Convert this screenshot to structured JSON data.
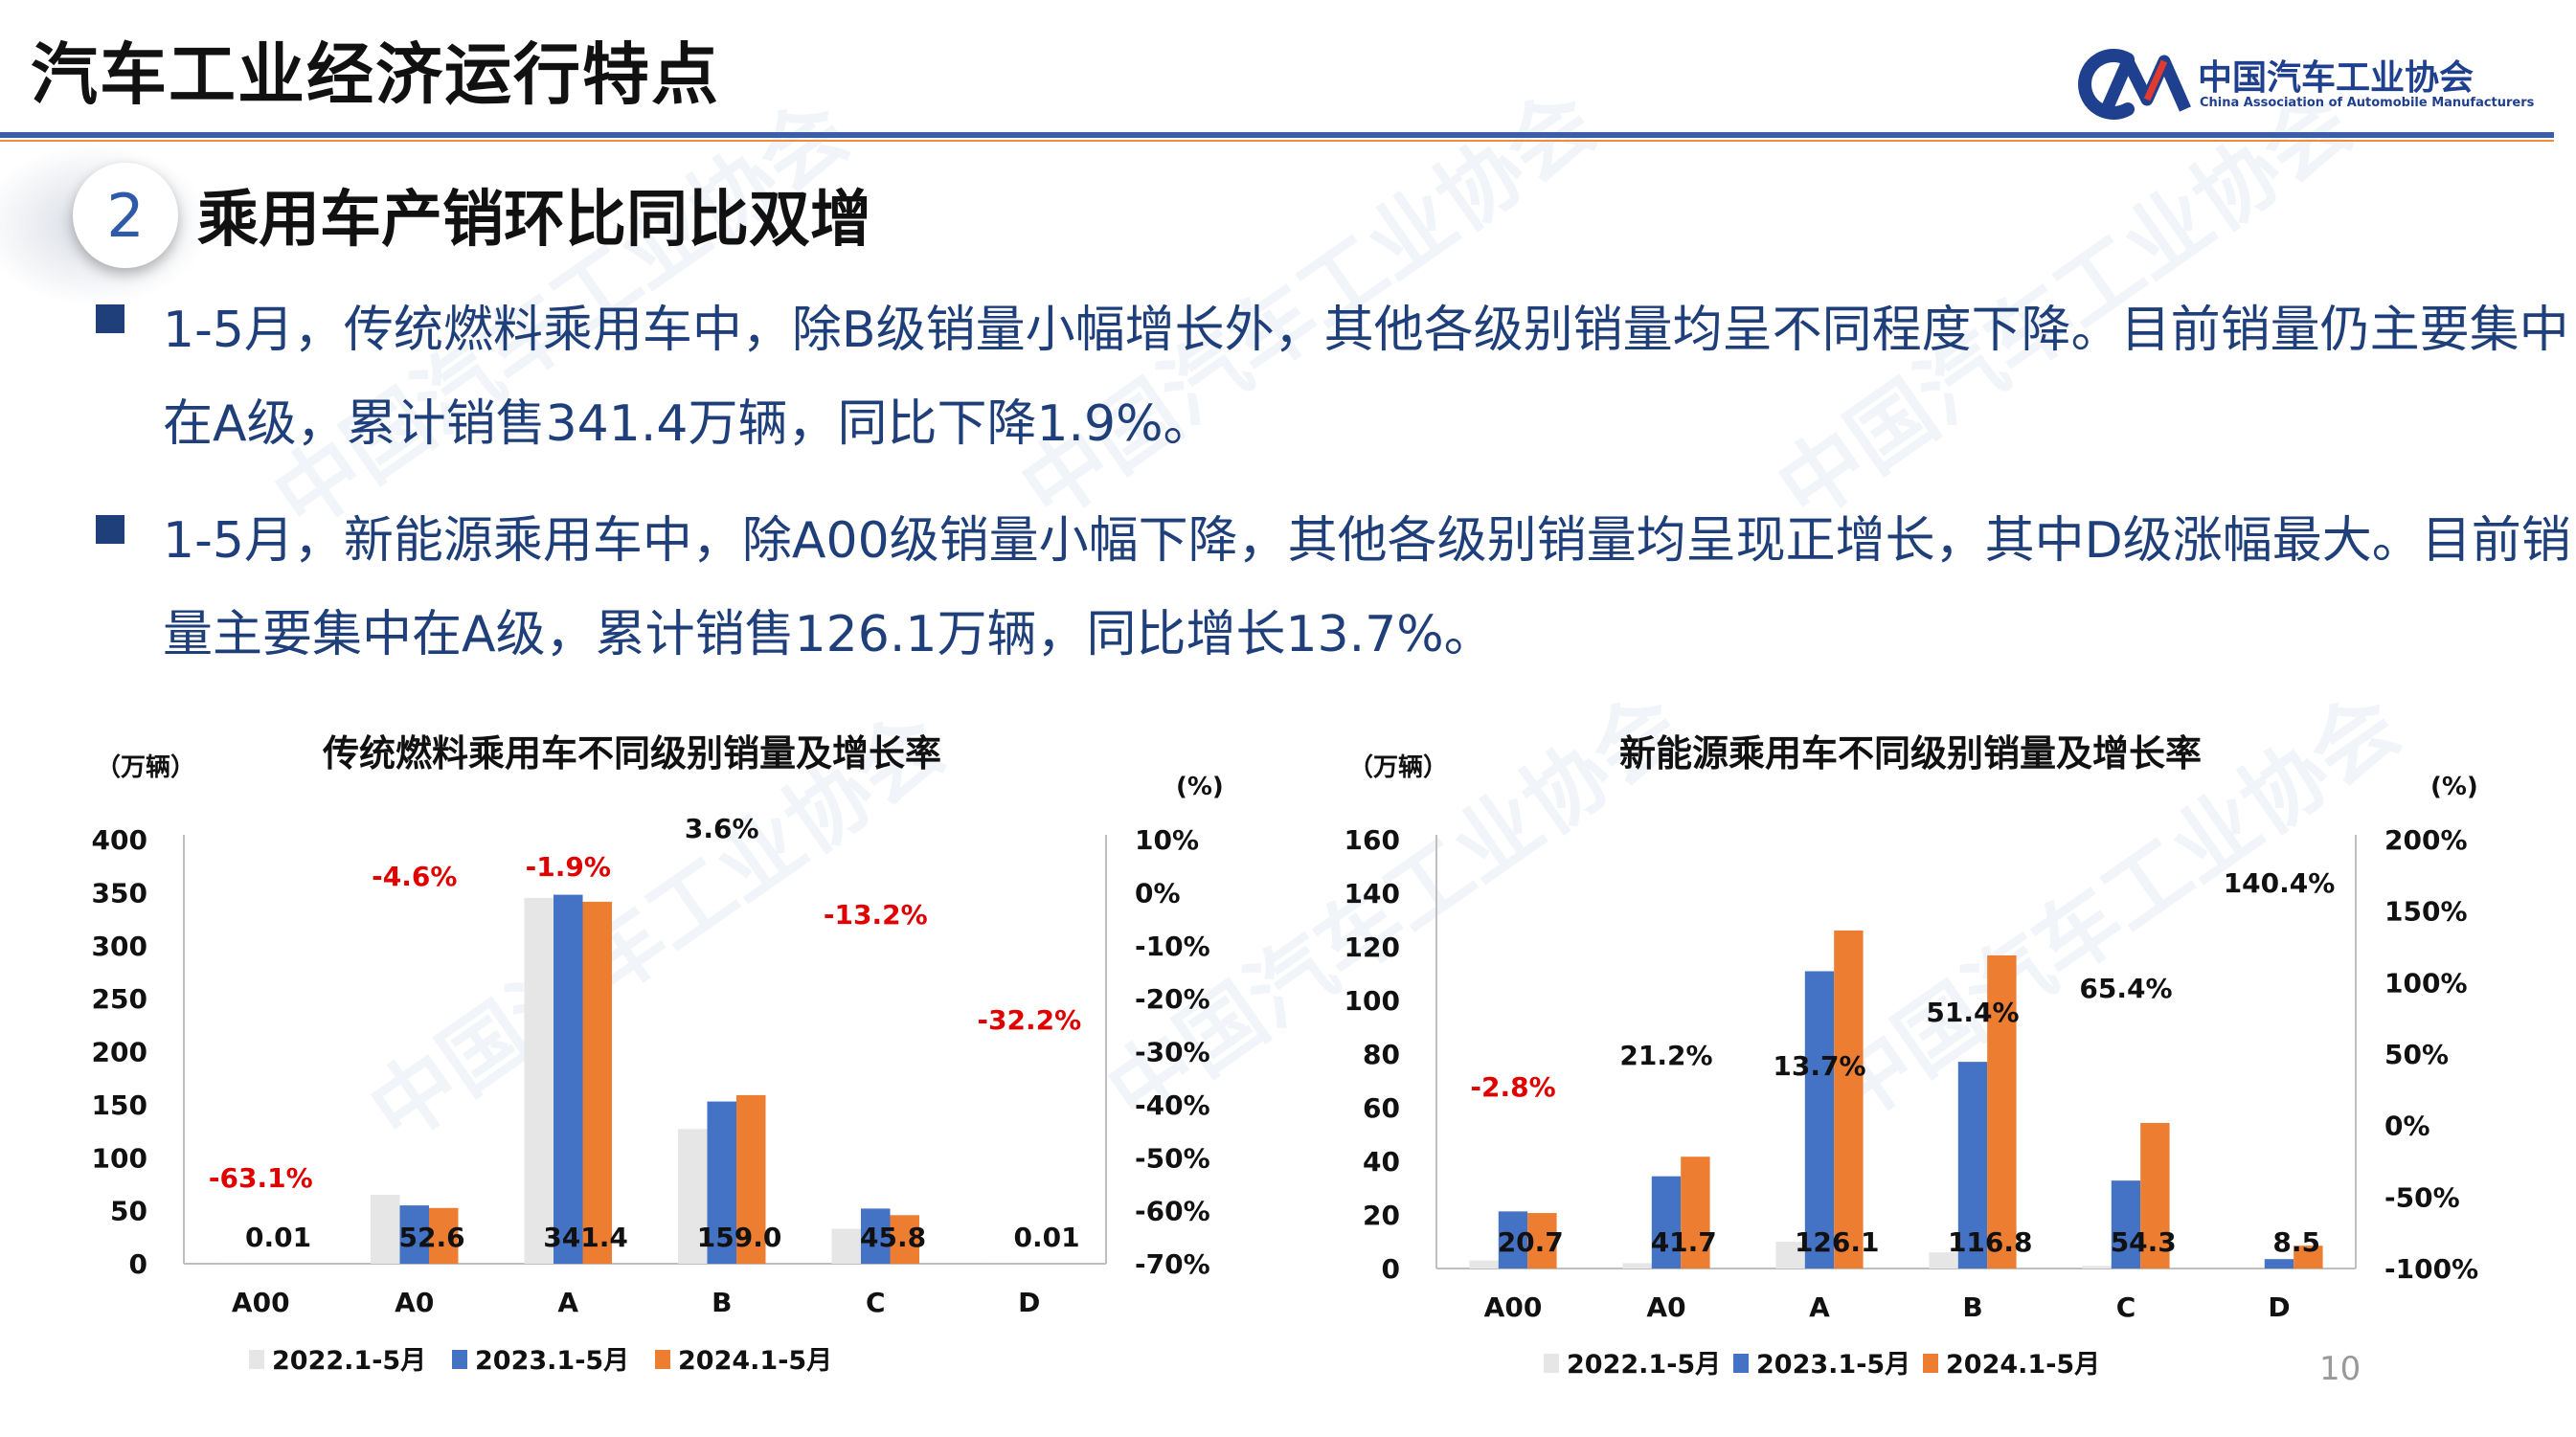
{
  "header": {
    "title": "汽车工业经济运行特点",
    "logo_cn": "中国汽车工业协会",
    "logo_en": "China Association of Automobile Manufacturers"
  },
  "section": {
    "number": "2",
    "title": "乘用车产销环比同比双增"
  },
  "bullets": [
    "1-5月，传统燃料乘用车中，除B级销量小幅增长外，其他各级别销量均呈不同程度下降。目前销量仍主要集中在A级，累计销售341.4万辆，同比下降1.9%。",
    "1-5月，新能源乘用车中，除A00级销量小幅下降，其他各级别销量均呈现正增长，其中D级涨幅最大。目前销量主要集中在A级，累计销售126.1万辆，同比增长13.7%。"
  ],
  "watermark": "中国汽车工业协会",
  "page_number": "10",
  "colors": {
    "s2022": "#e6e6e6",
    "s2023": "#4472c4",
    "s2024": "#ed7d31",
    "growth": "#e00000",
    "navy": "#1f3f7a"
  },
  "chart_data": [
    {
      "type": "bar",
      "title": "传统燃料乘用车不同级别销量及增长率",
      "ylabel_left": "（万辆）",
      "ylabel_right": "(%)",
      "categories": [
        "A00",
        "A0",
        "A",
        "B",
        "C",
        "D"
      ],
      "ylim": [
        0,
        400
      ],
      "yticks": [
        "0",
        "50",
        "100",
        "150",
        "200",
        "250",
        "300",
        "350",
        "400"
      ],
      "ylim_right": [
        -70,
        10
      ],
      "yticks_right": [
        "-70%",
        "-60%",
        "-50%",
        "-40%",
        "-30%",
        "-20%",
        "-10%",
        "0%",
        "10%"
      ],
      "series": [
        {
          "name": "2022.1-5月",
          "values": [
            0.01,
            65,
            345,
            127,
            33,
            0.01
          ]
        },
        {
          "name": "2023.1-5月",
          "values": [
            0.01,
            55,
            348,
            153,
            52,
            0.01
          ]
        },
        {
          "name": "2024.1-5月",
          "values": [
            0.01,
            52.6,
            341.4,
            159.0,
            45.8,
            0.01
          ]
        }
      ],
      "value_labels": [
        "0.01",
        "52.6",
        "341.4",
        "159.0",
        "45.8",
        "0.01"
      ],
      "growth_values": [
        -63.1,
        -4.6,
        -1.9,
        3.6,
        -13.2,
        -32.2
      ],
      "growth_labels": [
        "-63.1%",
        "-4.6%",
        "-1.9%",
        "3.6%",
        "-13.2%",
        "-32.2%"
      ],
      "legend": [
        "2022.1-5月",
        "2023.1-5月",
        "2024.1-5月"
      ],
      "legend_position": "bottom"
    },
    {
      "type": "bar",
      "title": "新能源乘用车不同级别销量及增长率",
      "ylabel_left": "（万辆）",
      "ylabel_right": "(%)",
      "categories": [
        "A00",
        "A0",
        "A",
        "B",
        "C",
        "D"
      ],
      "ylim": [
        0,
        160
      ],
      "yticks": [
        "0",
        "20",
        "40",
        "60",
        "80",
        "100",
        "120",
        "140",
        "160"
      ],
      "ylim_right": [
        -100,
        200
      ],
      "yticks_right": [
        "-100%",
        "-50%",
        "0%",
        "50%",
        "100%",
        "150%",
        "200%"
      ],
      "series": [
        {
          "name": "2022.1-5月",
          "values": [
            3,
            2,
            10,
            6,
            1,
            0
          ]
        },
        {
          "name": "2023.1-5月",
          "values": [
            21.3,
            34.4,
            110.9,
            77.1,
            32.8,
            3.5
          ]
        },
        {
          "name": "2024.1-5月",
          "values": [
            20.7,
            41.7,
            126.1,
            116.8,
            54.3,
            8.5
          ]
        }
      ],
      "value_labels": [
        "20.7",
        "41.7",
        "126.1",
        "116.8",
        "54.3",
        "8.5"
      ],
      "growth_values": [
        -2.8,
        21.2,
        13.7,
        51.4,
        65.4,
        140.4
      ],
      "growth_labels": [
        "-2.8%",
        "21.2%",
        "13.7%",
        "51.4%",
        "65.4%",
        "140.4%"
      ],
      "legend": [
        "2022.1-5月",
        "2023.1-5月",
        "2024.1-5月"
      ],
      "legend_position": "bottom"
    }
  ]
}
